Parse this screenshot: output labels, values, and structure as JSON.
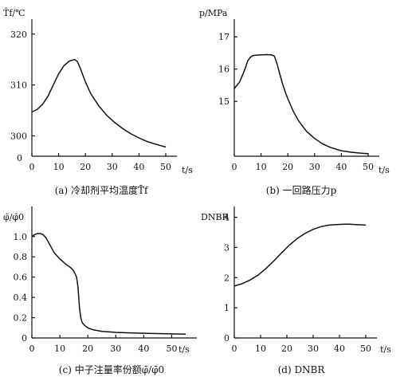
{
  "chart_data": [
    {
      "type": "line",
      "caption": "(a) 冷却剂平均温度T̄f",
      "ylabel": "T̄f/℃",
      "xlabel": "t/s",
      "xlim": [
        0,
        50
      ],
      "ylim": [
        296,
        322
      ],
      "xticks": [
        "0",
        "10",
        "20",
        "30",
        "40",
        "50"
      ],
      "xtick_values": [
        0,
        10,
        20,
        30,
        40,
        50
      ],
      "yticks": [
        "300",
        "310",
        "320"
      ],
      "ytick_values": [
        300,
        310,
        320
      ],
      "zero_label": "0",
      "series": [
        {
          "x": [
            0,
            2,
            4,
            6,
            8,
            10,
            12,
            14,
            16,
            17,
            18,
            20,
            22,
            25,
            28,
            31,
            34,
            37,
            40,
            43,
            46,
            50
          ],
          "y": [
            304.7,
            305.2,
            306.2,
            307.8,
            310.0,
            312.2,
            313.8,
            314.7,
            315.0,
            314.6,
            313.4,
            310.6,
            308.3,
            305.9,
            304.0,
            302.6,
            301.4,
            300.4,
            299.6,
            298.9,
            298.4,
            297.8
          ]
        }
      ]
    },
    {
      "type": "line",
      "caption": "(b) 一回路压力p",
      "ylabel": "p/MPa",
      "xlabel": "t/s",
      "xlim": [
        0,
        50
      ],
      "ylim": [
        13.3,
        17.4
      ],
      "xticks": [
        "0",
        "10",
        "20",
        "30",
        "40",
        "50"
      ],
      "xtick_values": [
        0,
        10,
        20,
        30,
        40,
        50
      ],
      "yticks": [
        "15",
        "16",
        "17"
      ],
      "ytick_values": [
        15,
        16,
        17
      ],
      "series": [
        {
          "x": [
            0,
            1,
            2,
            3,
            4,
            5,
            6,
            7,
            8,
            10,
            12,
            14,
            15,
            16,
            17,
            18,
            19,
            20,
            22,
            24,
            27,
            30,
            33,
            36,
            40,
            44,
            48,
            50
          ],
          "y": [
            15.4,
            15.5,
            15.6,
            15.8,
            16.0,
            16.25,
            16.37,
            16.42,
            16.43,
            16.44,
            16.45,
            16.44,
            16.4,
            16.15,
            15.85,
            15.55,
            15.3,
            15.08,
            14.7,
            14.4,
            14.07,
            13.85,
            13.68,
            13.57,
            13.47,
            13.42,
            13.39,
            13.38
          ]
        }
      ]
    },
    {
      "type": "line",
      "caption": "(c) 中子注量率份额φ̄/φ̄0",
      "ylabel": "φ̄/φ̄0",
      "xlabel": "t/s",
      "xlim": [
        0,
        55
      ],
      "ylim": [
        0,
        1.25
      ],
      "xticks": [
        "0",
        "10",
        "20",
        "30",
        "40",
        "50"
      ],
      "xtick_values": [
        0,
        10,
        20,
        30,
        40,
        50
      ],
      "yticks": [
        "0",
        "0.2",
        "0.4",
        "0.6",
        "0.8",
        "1.0"
      ],
      "ytick_values": [
        0,
        0.2,
        0.4,
        0.6,
        0.8,
        1.0
      ],
      "series": [
        {
          "x": [
            0,
            1,
            2,
            3,
            4,
            5,
            6,
            7,
            8,
            10,
            12,
            14,
            15,
            16,
            16.5,
            17,
            17.5,
            18,
            19,
            20,
            22,
            25,
            30,
            35,
            40,
            45,
            50,
            55
          ],
          "y": [
            1.0,
            1.02,
            1.03,
            1.03,
            1.02,
            0.99,
            0.94,
            0.89,
            0.84,
            0.78,
            0.73,
            0.69,
            0.66,
            0.6,
            0.5,
            0.3,
            0.2,
            0.15,
            0.12,
            0.1,
            0.08,
            0.065,
            0.055,
            0.05,
            0.046,
            0.043,
            0.04,
            0.038
          ]
        }
      ]
    },
    {
      "type": "line",
      "caption": "(d) DNBR",
      "ylabel": "DNBR",
      "xlabel": "t/s",
      "xlim": [
        0,
        50
      ],
      "ylim": [
        0,
        4.2
      ],
      "xticks": [
        "0",
        "10",
        "20",
        "30",
        "40",
        "50"
      ],
      "xtick_values": [
        0,
        10,
        20,
        30,
        40,
        50
      ],
      "yticks": [
        "0",
        "1",
        "2",
        "3",
        "4"
      ],
      "ytick_values": [
        0,
        1,
        2,
        3,
        4
      ],
      "series": [
        {
          "x": [
            0,
            3,
            6,
            9,
            12,
            15,
            18,
            21,
            24,
            27,
            30,
            33,
            36,
            39,
            42,
            44,
            46,
            48,
            50
          ],
          "y": [
            1.72,
            1.8,
            1.92,
            2.08,
            2.3,
            2.55,
            2.82,
            3.08,
            3.3,
            3.47,
            3.6,
            3.69,
            3.74,
            3.76,
            3.77,
            3.77,
            3.76,
            3.75,
            3.74
          ]
        }
      ]
    }
  ]
}
